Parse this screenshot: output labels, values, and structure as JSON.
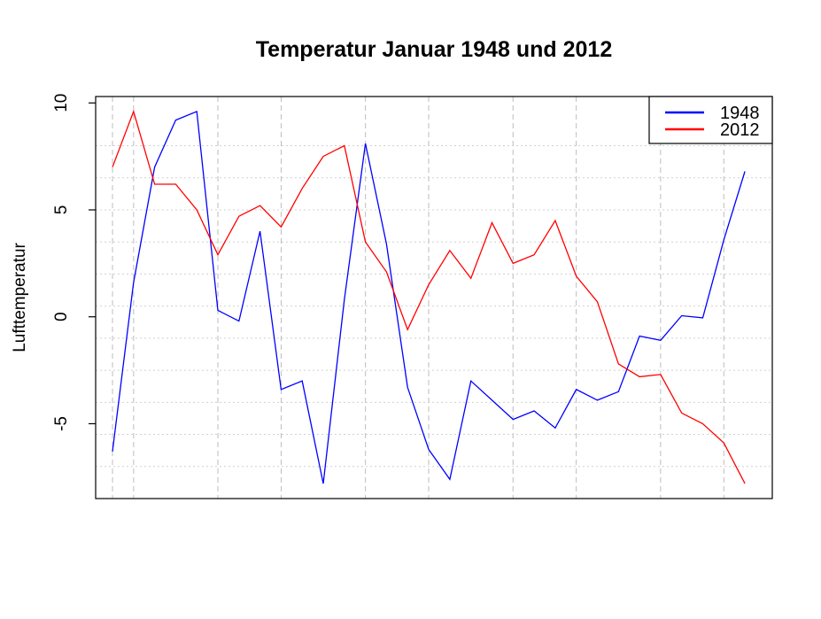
{
  "chart_data": {
    "type": "line",
    "title": "Temperatur Januar 1948 und 2012",
    "xlabel": "",
    "ylabel": "Lufttemperatur",
    "x": [
      1,
      2,
      3,
      4,
      5,
      6,
      7,
      8,
      9,
      10,
      11,
      12,
      13,
      14,
      15,
      16,
      17,
      18,
      19,
      20,
      21,
      22,
      23,
      24,
      25,
      26,
      27,
      28,
      29,
      30,
      31
    ],
    "xlim": [
      0.2,
      32.3
    ],
    "ylim": [
      -8.5,
      10.3
    ],
    "yticks": [
      -5,
      0,
      5,
      10
    ],
    "ytick_labels": [
      "-5",
      "0",
      "5",
      "10"
    ],
    "grid": true,
    "legend_position": "top-right",
    "series": [
      {
        "name": "1948",
        "color": "#0000ff",
        "values": [
          -6.3,
          1.6,
          7.0,
          9.2,
          9.6,
          0.3,
          -0.2,
          4.0,
          -3.4,
          -3.0,
          -7.8,
          0.8,
          8.1,
          3.4,
          -3.3,
          -6.2,
          -7.6,
          -3.0,
          -3.9,
          -4.8,
          -4.4,
          -5.2,
          -3.4,
          -3.9,
          -3.5,
          -0.9,
          -1.1,
          0.05,
          -0.05,
          3.6,
          6.8
        ]
      },
      {
        "name": "2012",
        "color": "#ff0000",
        "values": [
          7.0,
          9.6,
          6.2,
          6.2,
          5.0,
          2.9,
          4.7,
          5.2,
          4.2,
          6.0,
          7.5,
          8.0,
          3.5,
          2.1,
          -0.6,
          1.5,
          3.1,
          1.8,
          4.4,
          2.5,
          2.9,
          4.5,
          1.9,
          0.7,
          -2.2,
          -2.8,
          -2.7,
          -4.5,
          -5.0,
          -5.9,
          -7.8
        ]
      }
    ]
  }
}
